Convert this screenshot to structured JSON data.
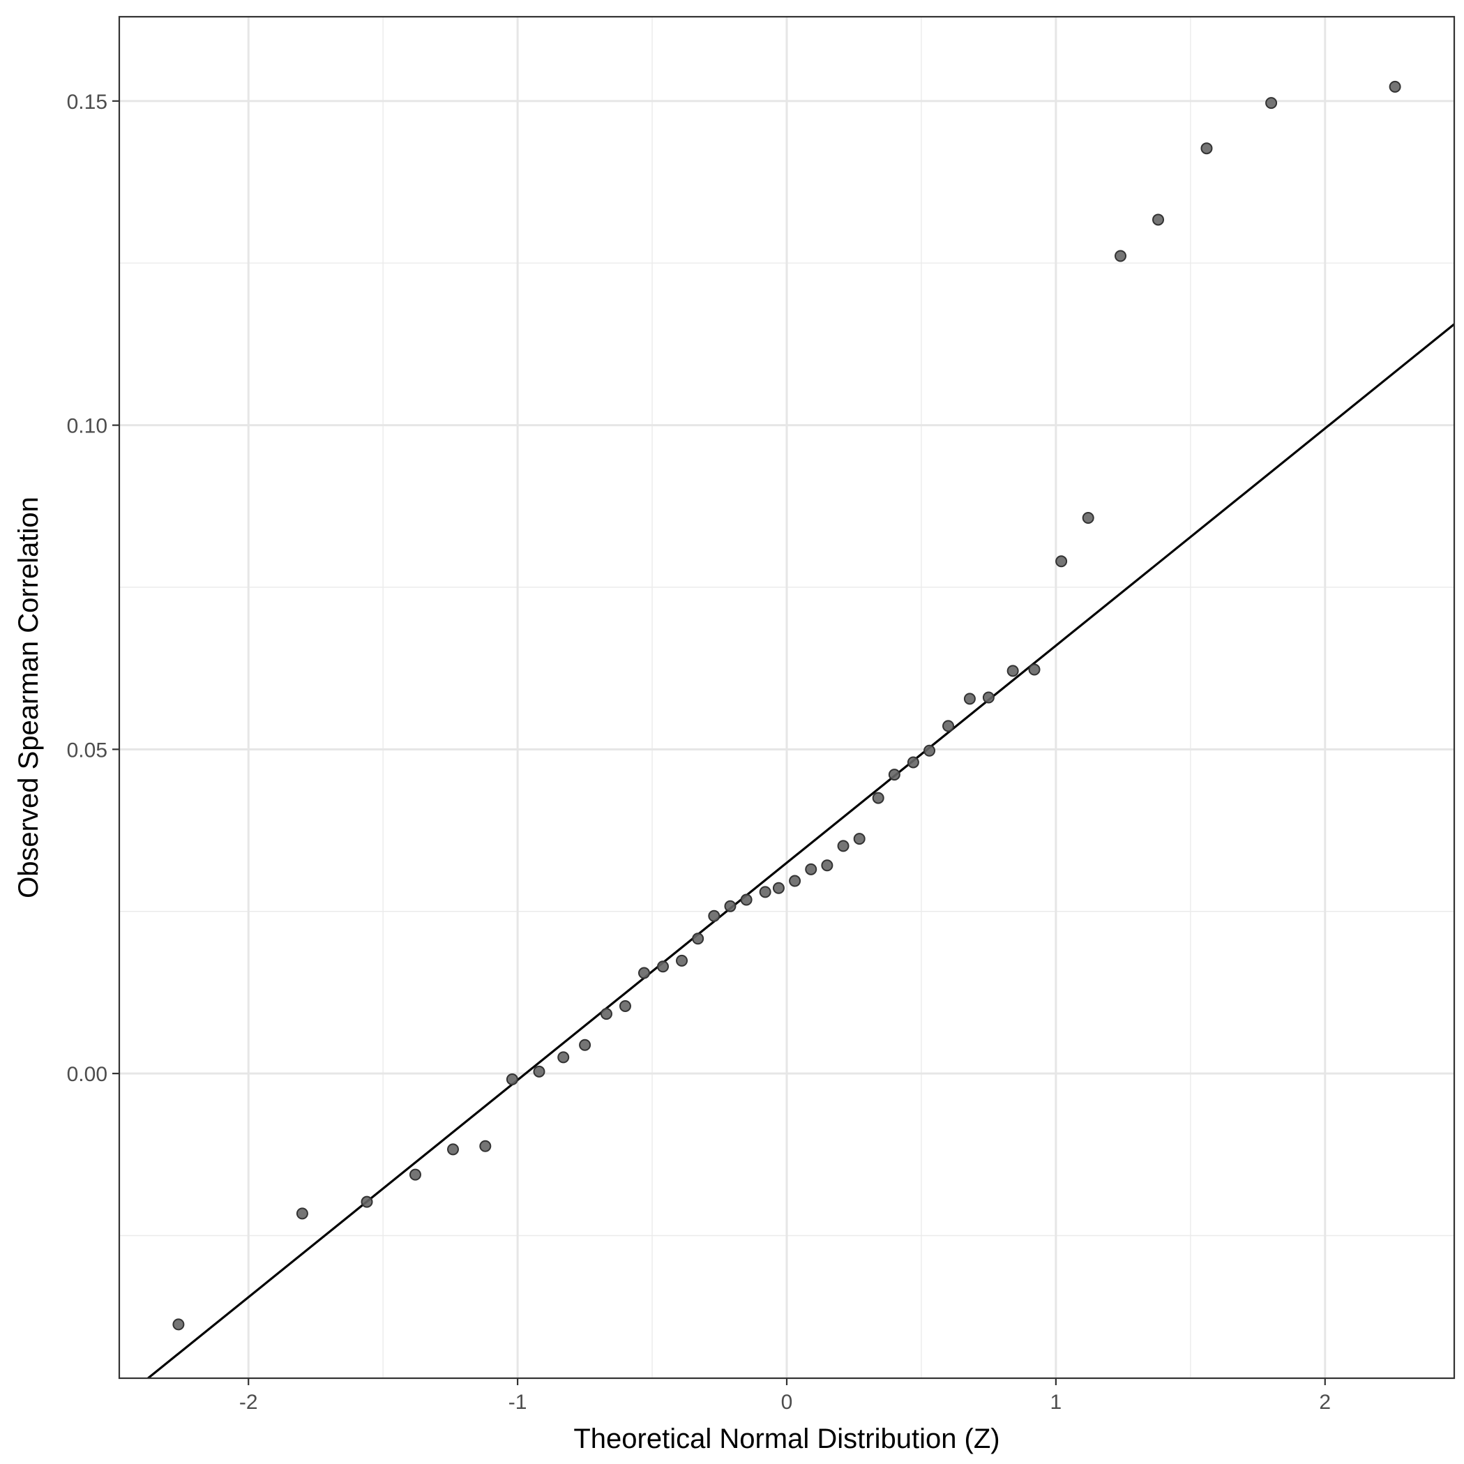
{
  "chart_data": {
    "type": "scatter",
    "title": "",
    "xlabel": "Theoretical Normal Distribution (Z)",
    "ylabel": "Observed Spearman Correlation",
    "xlim": [
      -2.48,
      2.48
    ],
    "ylim": [
      -0.047,
      0.163
    ],
    "x_ticks": [
      -2,
      -1,
      0,
      1,
      2
    ],
    "x_tick_labels": [
      "-2",
      "-1",
      "0",
      "1",
      "2"
    ],
    "y_ticks": [
      0.0,
      0.05,
      0.1,
      0.15
    ],
    "y_tick_labels": [
      "0.00",
      "0.05",
      "0.10",
      "0.15"
    ],
    "grid": true,
    "x_minor_ticks": [
      -1.5,
      -0.5,
      0.5,
      1.5
    ],
    "y_minor_ticks": [
      -0.025,
      0.025,
      0.075,
      0.125
    ],
    "point_color": "#666666",
    "line_color": "#000000",
    "reference_line": {
      "intercept": 0.0325,
      "slope": 0.0335
    },
    "series": [
      {
        "points": [
          {
            "x": -2.26,
            "y": -0.0387
          },
          {
            "x": -1.8,
            "y": -0.0216
          },
          {
            "x": -1.56,
            "y": -0.0198
          },
          {
            "x": -1.38,
            "y": -0.0156
          },
          {
            "x": -1.24,
            "y": -0.0117
          },
          {
            "x": -1.12,
            "y": -0.0112
          },
          {
            "x": -1.02,
            "y": -0.0009
          },
          {
            "x": -0.92,
            "y": 0.0003
          },
          {
            "x": -0.83,
            "y": 0.0025
          },
          {
            "x": -0.75,
            "y": 0.0044
          },
          {
            "x": -0.67,
            "y": 0.0092
          },
          {
            "x": -0.6,
            "y": 0.0104
          },
          {
            "x": -0.53,
            "y": 0.0155
          },
          {
            "x": -0.46,
            "y": 0.0165
          },
          {
            "x": -0.39,
            "y": 0.0174
          },
          {
            "x": -0.33,
            "y": 0.0208
          },
          {
            "x": -0.27,
            "y": 0.0243
          },
          {
            "x": -0.21,
            "y": 0.0258
          },
          {
            "x": -0.15,
            "y": 0.0268
          },
          {
            "x": -0.08,
            "y": 0.028
          },
          {
            "x": -0.03,
            "y": 0.0286
          },
          {
            "x": 0.03,
            "y": 0.0297
          },
          {
            "x": 0.09,
            "y": 0.0315
          },
          {
            "x": 0.15,
            "y": 0.0321
          },
          {
            "x": 0.21,
            "y": 0.0351
          },
          {
            "x": 0.27,
            "y": 0.0362
          },
          {
            "x": 0.34,
            "y": 0.0425
          },
          {
            "x": 0.4,
            "y": 0.0461
          },
          {
            "x": 0.47,
            "y": 0.048
          },
          {
            "x": 0.53,
            "y": 0.0498
          },
          {
            "x": 0.6,
            "y": 0.0536
          },
          {
            "x": 0.68,
            "y": 0.0578
          },
          {
            "x": 0.75,
            "y": 0.058
          },
          {
            "x": 0.84,
            "y": 0.0621
          },
          {
            "x": 0.92,
            "y": 0.0623
          },
          {
            "x": 1.02,
            "y": 0.079
          },
          {
            "x": 1.12,
            "y": 0.0857
          },
          {
            "x": 1.24,
            "y": 0.1261
          },
          {
            "x": 1.38,
            "y": 0.1317
          },
          {
            "x": 1.56,
            "y": 0.1427
          },
          {
            "x": 1.8,
            "y": 0.1497
          },
          {
            "x": 2.26,
            "y": 0.1522
          }
        ]
      }
    ]
  }
}
